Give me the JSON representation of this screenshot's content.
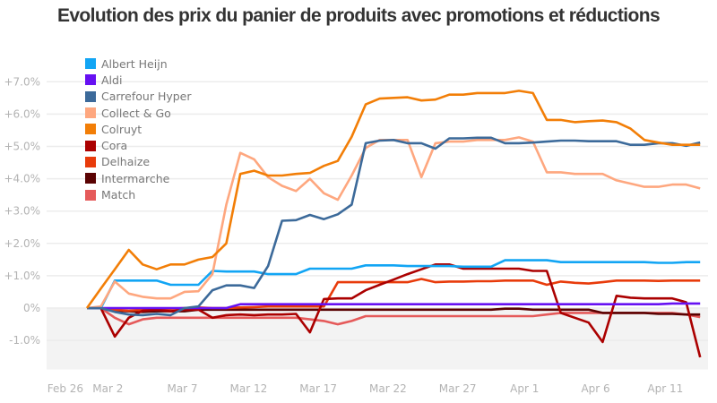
{
  "chart_data": {
    "type": "line",
    "title": "Evolution des prix du panier de produits avec promotions et réductions",
    "xlabel": "",
    "ylabel": "",
    "ylim": [
      -1.9,
      7.3
    ],
    "yticks": [
      {
        "value": 7,
        "label": "+7.0%"
      },
      {
        "value": 6,
        "label": "+6.0%"
      },
      {
        "value": 5,
        "label": "+5.0%"
      },
      {
        "value": 4,
        "label": "+4.0%"
      },
      {
        "value": 3,
        "label": "+3.0%"
      },
      {
        "value": 2,
        "label": "+2.0%"
      },
      {
        "value": 1,
        "label": "+1.0%"
      },
      {
        "value": 0,
        "label": "0%"
      },
      {
        "value": -1,
        "label": "-1.0%"
      }
    ],
    "x_index_range": [
      -1.55,
      44.6
    ],
    "xticks": [
      {
        "index": -1.55,
        "label": "Feb 26"
      },
      {
        "index": 1.5,
        "label": "Mar 2"
      },
      {
        "index": 6.85,
        "label": "Mar 7"
      },
      {
        "index": 11.6,
        "label": "Mar 12"
      },
      {
        "index": 16.6,
        "label": "Mar 17"
      },
      {
        "index": 21.6,
        "label": "Mar 22"
      },
      {
        "index": 26.6,
        "label": "Mar 27"
      },
      {
        "index": 31.4,
        "label": "Apr 1"
      },
      {
        "index": 36.5,
        "label": "Apr 6"
      },
      {
        "index": 41.5,
        "label": "Apr 11"
      }
    ],
    "grid": true,
    "negative_area_shaded": true,
    "legend_position": "top-left",
    "series": [
      {
        "name": "Albert Heijn",
        "color": "#12a5f4",
        "values": [
          0,
          0,
          0.85,
          0.85,
          0.85,
          0.85,
          0.72,
          0.72,
          0.72,
          1.15,
          1.13,
          1.13,
          1.13,
          1.05,
          1.05,
          1.05,
          1.22,
          1.22,
          1.22,
          1.22,
          1.32,
          1.32,
          1.32,
          1.3,
          1.3,
          1.3,
          1.3,
          1.28,
          1.28,
          1.28,
          1.48,
          1.48,
          1.48,
          1.48,
          1.42,
          1.42,
          1.42,
          1.42,
          1.42,
          1.42,
          1.42,
          1.4,
          1.4,
          1.42,
          1.42
        ]
      },
      {
        "name": "Aldi",
        "color": "#6610f2",
        "values": [
          0,
          0,
          0,
          0,
          0,
          0,
          0,
          0,
          0,
          0,
          0,
          0.12,
          0.12,
          0.12,
          0.12,
          0.12,
          0.12,
          0.12,
          0.12,
          0.12,
          0.12,
          0.12,
          0.12,
          0.12,
          0.12,
          0.12,
          0.12,
          0.12,
          0.12,
          0.12,
          0.12,
          0.12,
          0.12,
          0.12,
          0.12,
          0.12,
          0.12,
          0.12,
          0.12,
          0.12,
          0.12,
          0.12,
          0.14,
          0.14,
          0.14
        ]
      },
      {
        "name": "Carrefour Hyper",
        "color": "#3c6a9a",
        "values": [
          0,
          0,
          -0.12,
          -0.2,
          -0.22,
          -0.18,
          -0.22,
          0,
          0.05,
          0.55,
          0.7,
          0.7,
          0.62,
          1.3,
          2.7,
          2.72,
          2.88,
          2.75,
          2.9,
          3.2,
          5.1,
          5.18,
          5.2,
          5.1,
          5.1,
          4.93,
          5.25,
          5.25,
          5.27,
          5.27,
          5.1,
          5.1,
          5.12,
          5.15,
          5.18,
          5.18,
          5.16,
          5.16,
          5.16,
          5.05,
          5.05,
          5.1,
          5.1,
          5.02,
          5.12
        ]
      },
      {
        "name": "Collect & Go",
        "color": "#fea77f",
        "values": [
          0,
          0.05,
          0.82,
          0.45,
          0.35,
          0.3,
          0.3,
          0.5,
          0.52,
          1.05,
          3.2,
          4.8,
          4.6,
          4.05,
          3.78,
          3.62,
          4.0,
          3.55,
          3.35,
          4.1,
          4.95,
          5.2,
          5.2,
          5.2,
          4.05,
          5.1,
          5.15,
          5.15,
          5.2,
          5.2,
          5.2,
          5.28,
          5.15,
          4.2,
          4.2,
          4.15,
          4.15,
          4.15,
          3.95,
          3.85,
          3.75,
          3.75,
          3.82,
          3.82,
          3.7
        ]
      },
      {
        "name": "Colruyt",
        "color": "#f27e07",
        "values": [
          0,
          0.6,
          1.2,
          1.8,
          1.35,
          1.2,
          1.35,
          1.35,
          1.5,
          1.58,
          2.0,
          4.15,
          4.25,
          4.1,
          4.1,
          4.15,
          4.18,
          4.4,
          4.55,
          5.3,
          6.3,
          6.48,
          6.5,
          6.52,
          6.42,
          6.45,
          6.6,
          6.6,
          6.65,
          6.65,
          6.65,
          6.72,
          6.65,
          5.82,
          5.82,
          5.75,
          5.78,
          5.8,
          5.75,
          5.55,
          5.2,
          5.12,
          5.05,
          5.05,
          5.05
        ]
      },
      {
        "name": "Cora",
        "color": "#ab0000",
        "values": [
          0,
          0,
          -0.88,
          -0.3,
          -0.08,
          -0.05,
          -0.1,
          -0.05,
          -0.05,
          -0.3,
          -0.22,
          -0.2,
          -0.22,
          -0.2,
          -0.2,
          -0.18,
          -0.75,
          0.28,
          0.3,
          0.3,
          0.55,
          0.72,
          0.88,
          1.05,
          1.2,
          1.35,
          1.35,
          1.22,
          1.22,
          1.22,
          1.22,
          1.22,
          1.15,
          1.15,
          -0.15,
          -0.3,
          -0.45,
          -1.05,
          0.38,
          0.32,
          0.3,
          0.3,
          0.3,
          0.18,
          -1.52
        ]
      },
      {
        "name": "Delhaize",
        "color": "#e83b0b",
        "values": [
          0,
          0,
          -0.05,
          -0.08,
          -0.05,
          -0.05,
          -0.02,
          0.0,
          0.02,
          0.0,
          0.0,
          0.02,
          0.03,
          0.05,
          0.05,
          0.05,
          0.05,
          0.05,
          0.8,
          0.8,
          0.8,
          0.8,
          0.8,
          0.8,
          0.9,
          0.8,
          0.82,
          0.82,
          0.83,
          0.83,
          0.85,
          0.85,
          0.85,
          0.72,
          0.82,
          0.78,
          0.76,
          0.8,
          0.85,
          0.85,
          0.85,
          0.84,
          0.85,
          0.85,
          0.85
        ]
      },
      {
        "name": "Intermarche",
        "color": "#5a0202",
        "values": [
          0,
          0,
          -0.08,
          -0.1,
          -0.12,
          -0.1,
          -0.1,
          -0.1,
          -0.05,
          -0.05,
          -0.05,
          -0.05,
          -0.05,
          -0.05,
          -0.05,
          -0.05,
          -0.05,
          -0.05,
          -0.05,
          -0.05,
          -0.05,
          -0.05,
          -0.05,
          -0.05,
          -0.05,
          -0.05,
          -0.05,
          -0.05,
          -0.05,
          -0.05,
          -0.02,
          -0.02,
          -0.05,
          -0.05,
          -0.05,
          -0.05,
          -0.05,
          -0.15,
          -0.15,
          -0.15,
          -0.15,
          -0.18,
          -0.18,
          -0.2,
          -0.2
        ]
      },
      {
        "name": "Match",
        "color": "#e55a5a",
        "values": [
          0,
          0,
          -0.3,
          -0.5,
          -0.35,
          -0.3,
          -0.3,
          -0.3,
          -0.3,
          -0.3,
          -0.3,
          -0.3,
          -0.3,
          -0.3,
          -0.3,
          -0.3,
          -0.35,
          -0.4,
          -0.5,
          -0.4,
          -0.25,
          -0.25,
          -0.25,
          -0.25,
          -0.25,
          -0.25,
          -0.25,
          -0.25,
          -0.25,
          -0.25,
          -0.25,
          -0.25,
          -0.25,
          -0.2,
          -0.15,
          -0.15,
          -0.15,
          -0.15,
          -0.15,
          -0.15,
          -0.15,
          -0.15,
          -0.15,
          -0.2,
          -0.28
        ]
      }
    ]
  }
}
